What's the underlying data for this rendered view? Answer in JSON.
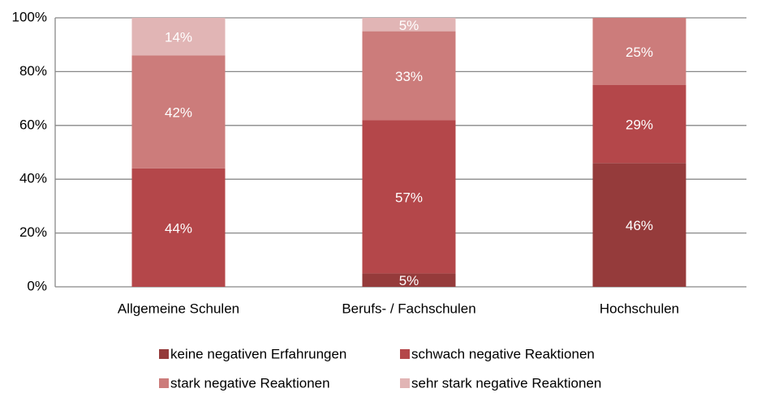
{
  "chart_data": {
    "type": "stacked_bar",
    "categories": [
      "Allgemeine Schulen",
      "Berufs- / Fachschulen",
      "Hochschulen"
    ],
    "series": [
      {
        "name": "keine negativen Erfahrungen",
        "color": "#953b3b",
        "values": [
          null,
          5,
          46
        ],
        "value_labels": [
          null,
          "5%",
          "46%"
        ]
      },
      {
        "name": "schwach negative Reaktionen",
        "color": "#b4474a",
        "values": [
          44,
          57,
          29
        ],
        "value_labels": [
          "44%",
          "57%",
          "29%"
        ]
      },
      {
        "name": "stark negative Reaktionen",
        "color": "#cc7c7b",
        "values": [
          42,
          33,
          25
        ],
        "value_labels": [
          "42%",
          "33%",
          "25%"
        ]
      },
      {
        "name": "sehr stark negative Reaktionen",
        "color": "#e1b5b5",
        "values": [
          14,
          5,
          null
        ],
        "value_labels": [
          "14%",
          "5%",
          null
        ]
      }
    ],
    "ylim": [
      0,
      100
    ],
    "yticks": [
      {
        "value": 0,
        "label": "0%"
      },
      {
        "value": 20,
        "label": "20%"
      },
      {
        "value": 40,
        "label": "40%"
      },
      {
        "value": 60,
        "label": "60%"
      },
      {
        "value": 80,
        "label": "80%"
      },
      {
        "value": 100,
        "label": "100%"
      }
    ],
    "grid": true
  }
}
